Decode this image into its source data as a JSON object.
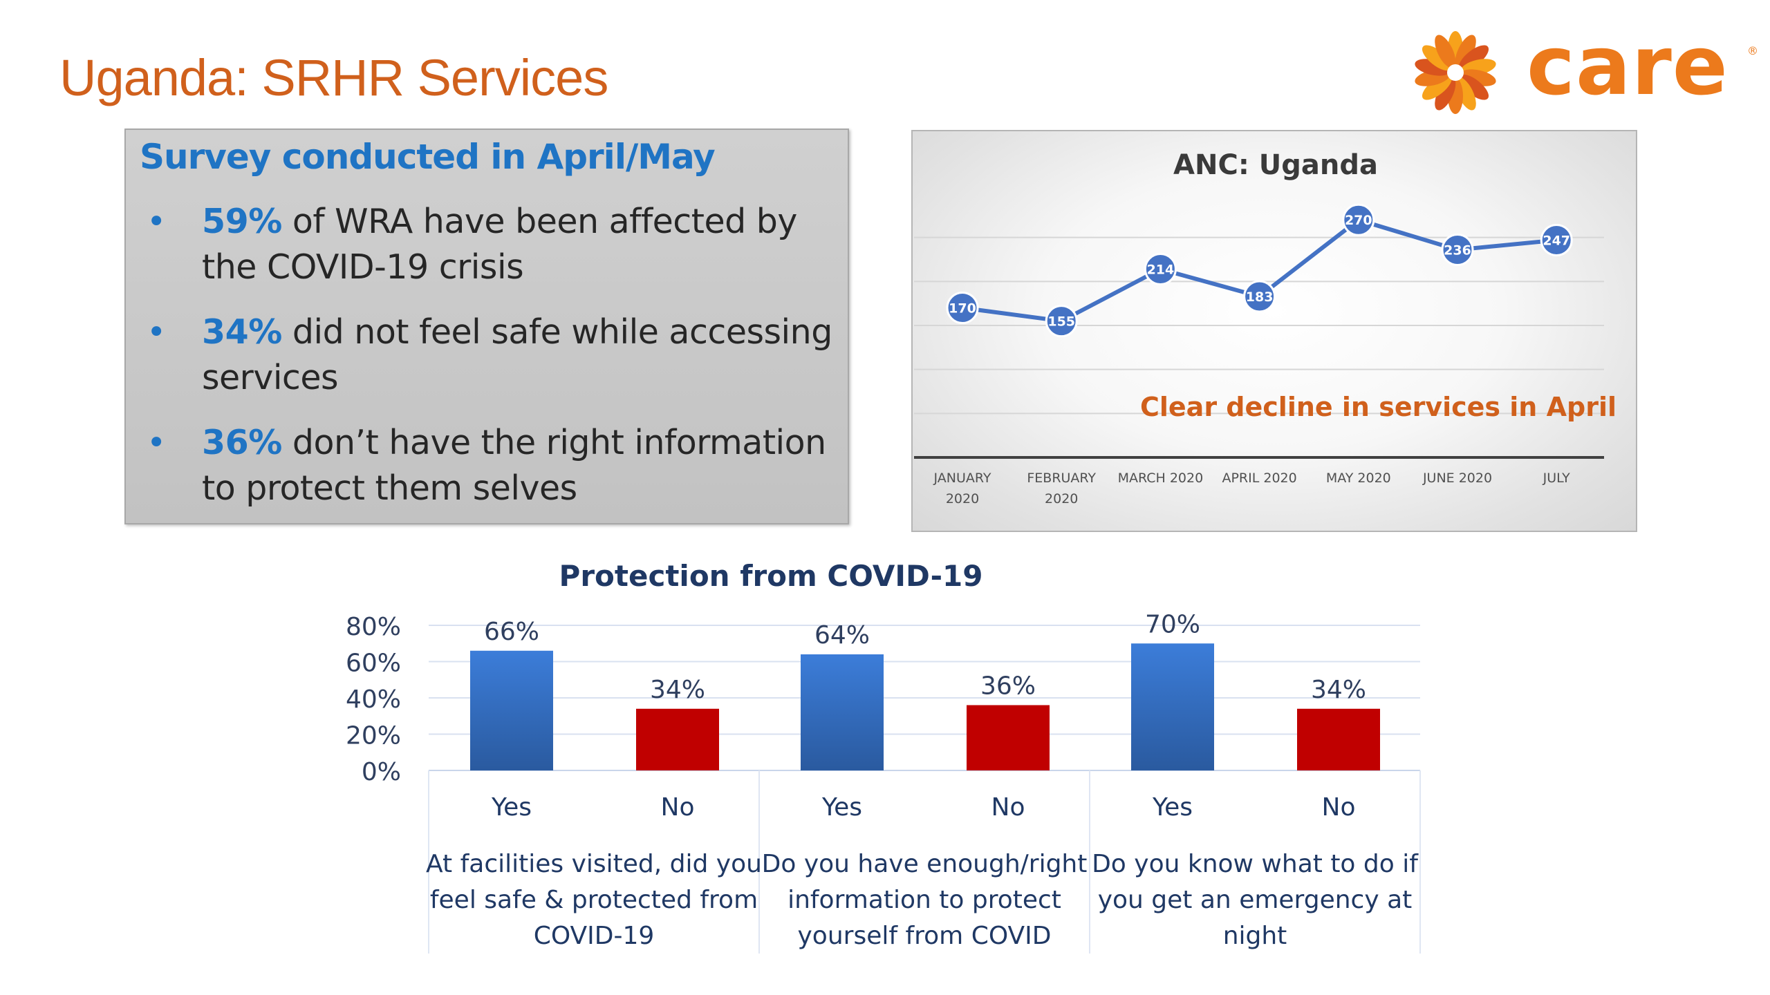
{
  "slide": {
    "title": "Uganda: SRHR Services"
  },
  "logo": {
    "word": "care",
    "reg_mark": "®",
    "icon": "care-hands-logo-icon",
    "colors": [
      "#F7A21B",
      "#EC7A1C",
      "#D9541E"
    ]
  },
  "survey": {
    "heading": "Survey conducted in April/May",
    "bullets": [
      {
        "pct": "59%",
        "line1": " of WRA have been affected by",
        "line2": "the COVID-19 crisis"
      },
      {
        "pct": "34%",
        "line1": " did not feel safe while accessing",
        "line2": "services"
      },
      {
        "pct": "36%",
        "line1": " don’t have the right information",
        "line2": "to protect them selves"
      }
    ]
  },
  "chart_data": [
    {
      "type": "line",
      "title": "ANC: Uganda",
      "categories": [
        [
          "JANUARY",
          "2020"
        ],
        [
          "FEBRUARY",
          "2020"
        ],
        [
          "MARCH 2020"
        ],
        [
          "APRIL 2020"
        ],
        [
          "MAY 2020"
        ],
        [
          "JUNE 2020"
        ],
        [
          "JULY"
        ]
      ],
      "values": [
        170,
        155,
        214,
        183,
        270,
        236,
        247
      ],
      "ylim": [
        0,
        300
      ],
      "grid": true,
      "line_color": "#4472C4",
      "annotation": "Clear decline in services in April",
      "annotation_color": "#D0601C"
    },
    {
      "type": "bar",
      "title": "Protection from COVID-19",
      "y_ticks": [
        "80%",
        "60%",
        "40%",
        "20%",
        "0%"
      ],
      "ylim": [
        0,
        80
      ],
      "groups": [
        {
          "question": [
            "At facilities visited, did you",
            "feel safe & protected from",
            "COVID-19"
          ],
          "bars": [
            {
              "label": "Yes",
              "value": 66,
              "display": "66%"
            },
            {
              "label": "No",
              "value": 34,
              "display": "34%"
            }
          ]
        },
        {
          "question": [
            "Do you have enough/right",
            "information to protect",
            "yourself from COVID"
          ],
          "bars": [
            {
              "label": "Yes",
              "value": 64,
              "display": "64%"
            },
            {
              "label": "No",
              "value": 36,
              "display": "36%"
            }
          ]
        },
        {
          "question": [
            "Do you know what to do if",
            "you get an emergency at",
            "night"
          ],
          "bars": [
            {
              "label": "Yes",
              "value": 70,
              "display": "70%"
            },
            {
              "label": "No",
              "value": 34,
              "display": "34%"
            }
          ]
        }
      ],
      "colors": {
        "Yes": "#3C7DD9",
        "No": "#C00000"
      },
      "grid": true
    }
  ]
}
